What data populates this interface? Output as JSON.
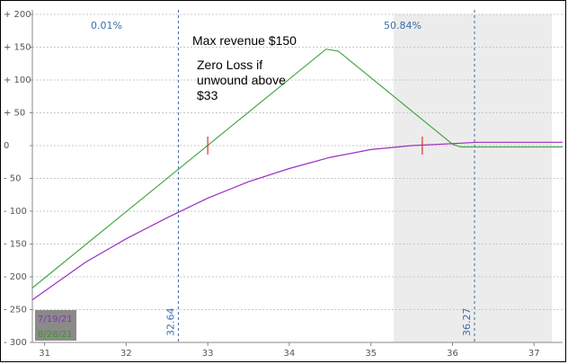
{
  "chart_data": {
    "type": "line",
    "title": "",
    "xlabel": "",
    "ylabel": "",
    "xlim": [
      30.85,
      37.35
    ],
    "ylim": [
      -300,
      200
    ],
    "x_ticks": [
      31,
      32,
      33,
      34,
      35,
      36,
      37
    ],
    "y_ticks": [
      200,
      150,
      100,
      50,
      0,
      -50,
      -100,
      -150,
      -200,
      -250,
      -300
    ],
    "y_tick_labels": [
      "+ 200",
      "+ 150",
      "+ 100",
      "+ 50",
      "0",
      "- 50",
      "- 100",
      "- 150",
      "- 200",
      "- 250",
      "- 300"
    ],
    "grid": true,
    "shaded_region": {
      "x_start": 35.28,
      "x_end": 37.22
    },
    "vertical_lines": [
      {
        "x": 32.64,
        "label": "32.64",
        "top_label": "0.01%"
      },
      {
        "x": 36.27,
        "label": "36.27",
        "top_label": "50.84%"
      }
    ],
    "markers": [
      {
        "x": 33.0,
        "y": 0
      },
      {
        "x": 35.63,
        "y": 0
      }
    ],
    "series": [
      {
        "name": "8/28/21",
        "color": "#44a844",
        "x": [
          30.85,
          34.45,
          34.6,
          36.0,
          36.1,
          37.35
        ],
        "y": [
          -217,
          147,
          144,
          2,
          -2,
          -2
        ]
      },
      {
        "name": "7/19/21",
        "color": "#9b2fc0",
        "x": [
          30.85,
          31.5,
          32.0,
          32.5,
          33.0,
          33.5,
          34.0,
          34.5,
          35.0,
          35.5,
          36.0,
          36.3,
          36.7,
          37.35
        ],
        "y": [
          -235,
          -178,
          -142,
          -110,
          -80,
          -55,
          -35,
          -18,
          -6,
          0,
          3,
          5,
          5,
          5
        ]
      }
    ],
    "annotations": [
      {
        "text": "Max revenue $150"
      },
      {
        "text": "Zero Loss if"
      },
      {
        "text": "unwound above"
      },
      {
        "text": "$33"
      }
    ],
    "legend": {
      "placement": "bottom-left",
      "entries": [
        "7/19/21",
        "8/28/21"
      ],
      "colors": [
        "#8a2fc0",
        "#3a9a1a"
      ],
      "background": "#8a8a8a"
    },
    "colors": {
      "shade": "#ececec",
      "grid": "#c8c8c8",
      "vline": "#3b6ea8",
      "marker": "#e03030",
      "axis_text": "#555555"
    }
  }
}
